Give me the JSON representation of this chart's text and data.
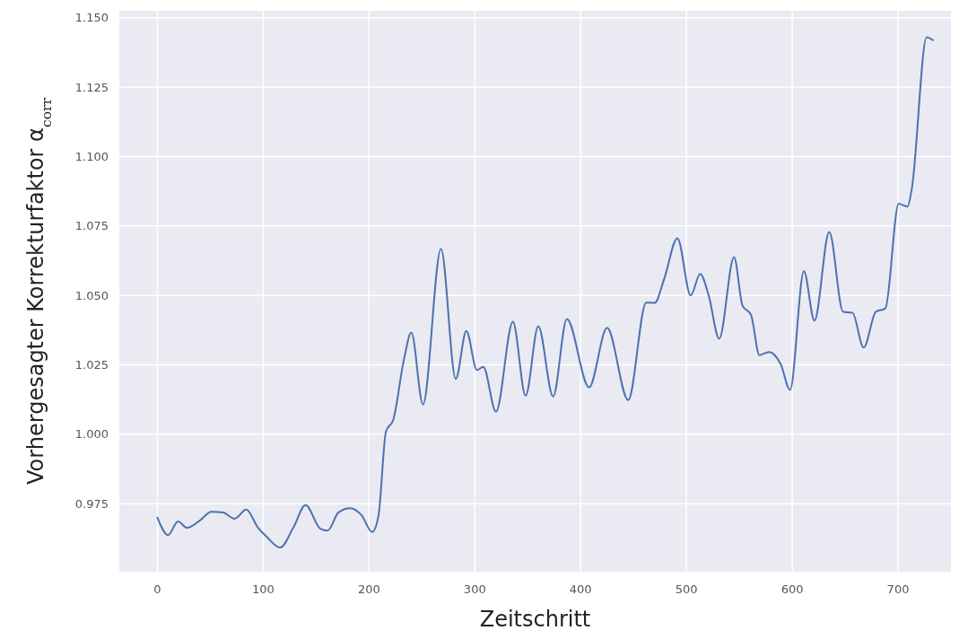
{
  "chart_data": {
    "type": "line",
    "xlabel": "Zeitschritt",
    "ylabel": "Vorhergesagter Korrekturfaktor α$_{corr}$",
    "xlim": [
      -36,
      750
    ],
    "ylim": [
      0.9505,
      1.1525
    ],
    "xticks": [
      0,
      100,
      200,
      300,
      400,
      500,
      600,
      700
    ],
    "yticks": [
      {
        "value": 0.975,
        "label": "0.975"
      },
      {
        "value": 1.0,
        "label": "1.000"
      },
      {
        "value": 1.025,
        "label": "1.025"
      },
      {
        "value": 1.05,
        "label": "1.050"
      },
      {
        "value": 1.075,
        "label": "1.075"
      },
      {
        "value": 1.1,
        "label": "1.100"
      },
      {
        "value": 1.125,
        "label": "1.125"
      },
      {
        "value": 1.15,
        "label": "1.150"
      }
    ],
    "grid": true,
    "marker": "none",
    "line_style": "solid",
    "series": [
      {
        "color": "#4c72b0",
        "x": [
          0,
          10,
          19.5,
          28,
          40,
          51,
          62,
          73,
          84,
          95,
          103,
          116,
          128.5,
          140,
          154,
          161,
          171,
          182,
          193,
          203,
          209,
          216,
          223,
          233,
          240,
          251,
          268,
          282,
          292,
          302,
          308,
          320,
          336,
          348,
          360,
          374,
          387,
          408,
          425,
          445,
          462,
          470,
          479,
          491.5,
          504,
          513,
          521,
          531,
          545,
          553,
          561,
          569,
          578,
          589,
          598,
          611,
          621,
          635,
          648,
          657,
          667.5,
          679,
          688,
          700.6,
          709,
          713,
          727,
          733
        ],
        "values": [
          0.97,
          0.9637,
          0.9686,
          0.9663,
          0.9689,
          0.9721,
          0.9718,
          0.9696,
          0.9729,
          0.9664,
          0.9632,
          0.9592,
          0.9664,
          0.9745,
          0.966,
          0.9653,
          0.9718,
          0.9734,
          0.9708,
          0.9648,
          0.9708,
          1.001,
          1.0053,
          1.0269,
          1.0366,
          1.0107,
          1.0668,
          1.0199,
          1.0372,
          1.0231,
          1.0243,
          1.0081,
          1.0405,
          1.0139,
          1.0389,
          1.0136,
          1.0415,
          1.0169,
          1.0383,
          1.0123,
          1.0474,
          1.0473,
          1.056,
          1.0706,
          1.05,
          1.0577,
          1.05,
          1.0344,
          1.0638,
          1.0463,
          1.043,
          1.0285,
          1.0296,
          1.0253,
          1.016,
          1.0587,
          1.0409,
          1.0728,
          1.0441,
          1.0437,
          1.0312,
          1.0441,
          1.0453,
          1.083,
          1.082,
          1.0884,
          1.143,
          1.1419
        ]
      }
    ]
  }
}
